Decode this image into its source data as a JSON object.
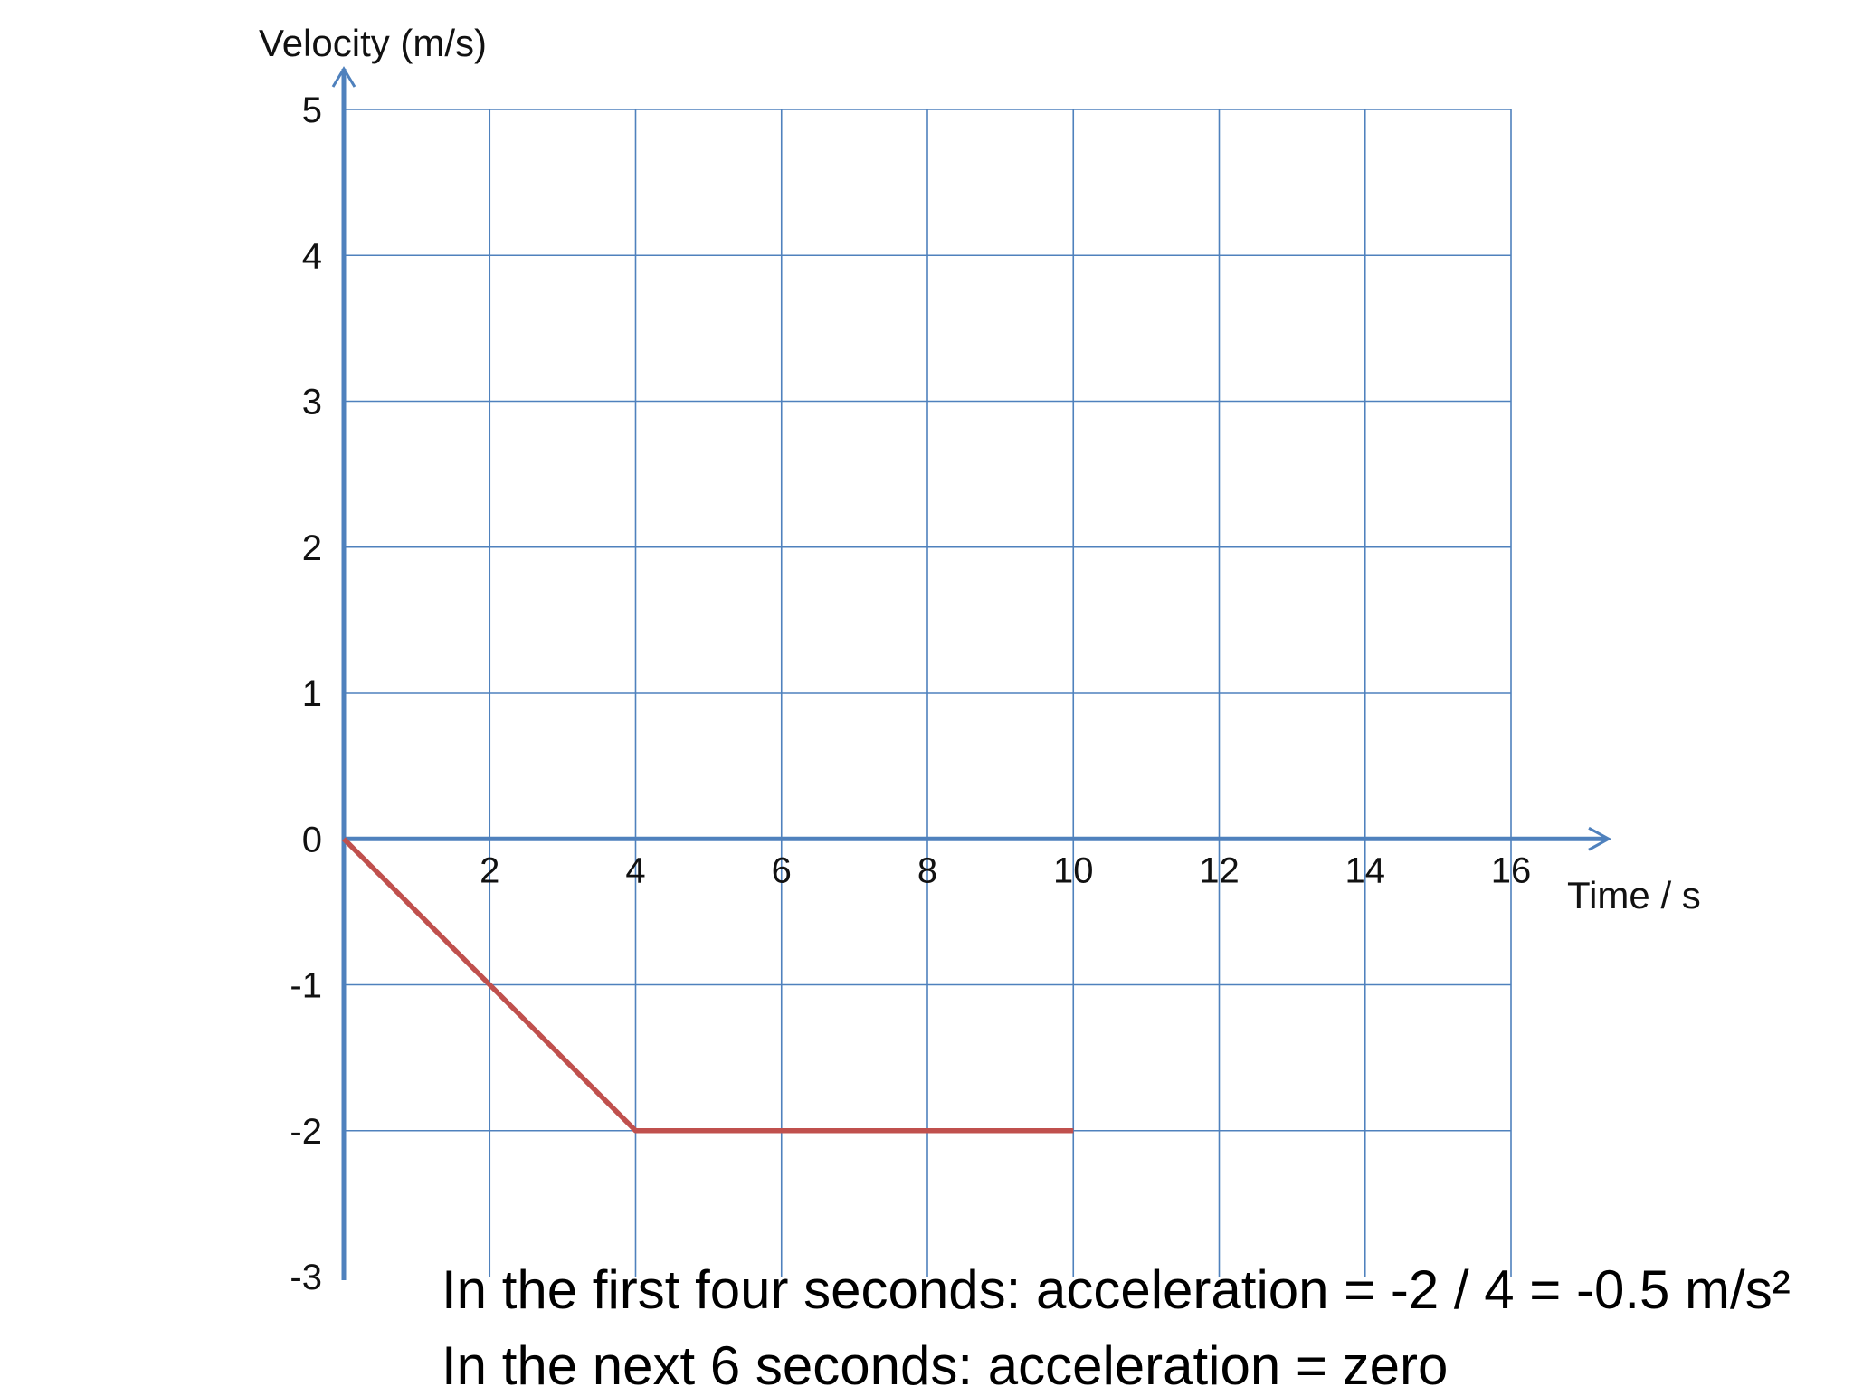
{
  "chart_data": {
    "type": "line",
    "title": "",
    "xlabel": "Time / s",
    "ylabel": "Velocity (m/s)",
    "xlim": [
      0,
      16
    ],
    "ylim": [
      -3,
      5
    ],
    "x_ticks": [
      2,
      4,
      6,
      8,
      10,
      12,
      14,
      16
    ],
    "y_ticks": [
      5,
      4,
      3,
      2,
      1,
      0,
      -1,
      -2,
      -3
    ],
    "grid": true,
    "series": [
      {
        "x": [
          0,
          4,
          10
        ],
        "y": [
          0,
          -2,
          -2
        ]
      }
    ],
    "annotations": [
      "In the first four seconds: acceleration = -2 / 4 = -0.5 m/s²",
      "In the next 6 seconds: acceleration = zero"
    ],
    "colors": {
      "grid": "#4f81bd",
      "axis": "#4f81bd",
      "line": "#c0504d"
    }
  }
}
